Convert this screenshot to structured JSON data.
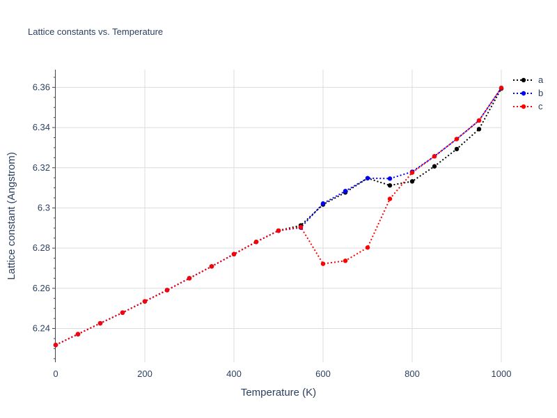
{
  "chart_data": {
    "type": "line",
    "title": "Lattice constants vs. Temperature",
    "xlabel": "Temperature (K)",
    "ylabel": "Lattice constant (Angstrom)",
    "xlim": [
      0,
      1000
    ],
    "ylim": [
      6.2232,
      6.3688
    ],
    "x_ticks": [
      0,
      200,
      400,
      600,
      800,
      1000
    ],
    "y_ticks": [
      6.24,
      6.26,
      6.28,
      6.3,
      6.32,
      6.34,
      6.36
    ],
    "y_tick_labels": [
      "6.24",
      "6.26",
      "6.28",
      "6.3",
      "6.32",
      "6.34",
      "6.36"
    ],
    "grid": true,
    "legend_position": "top-right",
    "x": [
      0,
      50,
      100,
      150,
      200,
      250,
      300,
      350,
      400,
      450,
      500,
      550,
      600,
      650,
      700,
      750,
      800,
      850,
      900,
      950,
      1000
    ],
    "series": [
      {
        "name": "a",
        "color": "#000000",
        "values": [
          6.2318,
          6.2372,
          6.2426,
          6.2479,
          6.2535,
          6.2591,
          6.265,
          6.2709,
          6.277,
          6.2831,
          6.2887,
          6.2913,
          6.3017,
          6.3077,
          6.3148,
          6.3112,
          6.3132,
          6.3207,
          6.3293,
          6.3392,
          6.3594
        ]
      },
      {
        "name": "b",
        "color": "#0000ff",
        "values": [
          6.2318,
          6.2372,
          6.2426,
          6.2479,
          6.2535,
          6.2591,
          6.265,
          6.2709,
          6.277,
          6.2831,
          6.2887,
          6.2902,
          6.3022,
          6.3084,
          6.3148,
          6.3146,
          6.318,
          6.3257,
          6.3343,
          6.3435,
          6.3597
        ]
      },
      {
        "name": "c",
        "color": "#ff0000",
        "values": [
          6.2318,
          6.2372,
          6.2426,
          6.2479,
          6.2535,
          6.2591,
          6.265,
          6.2709,
          6.277,
          6.2831,
          6.2887,
          6.2905,
          6.2722,
          6.2737,
          6.2803,
          6.3045,
          6.3176,
          6.3257,
          6.3343,
          6.3435,
          6.3597
        ]
      }
    ]
  }
}
